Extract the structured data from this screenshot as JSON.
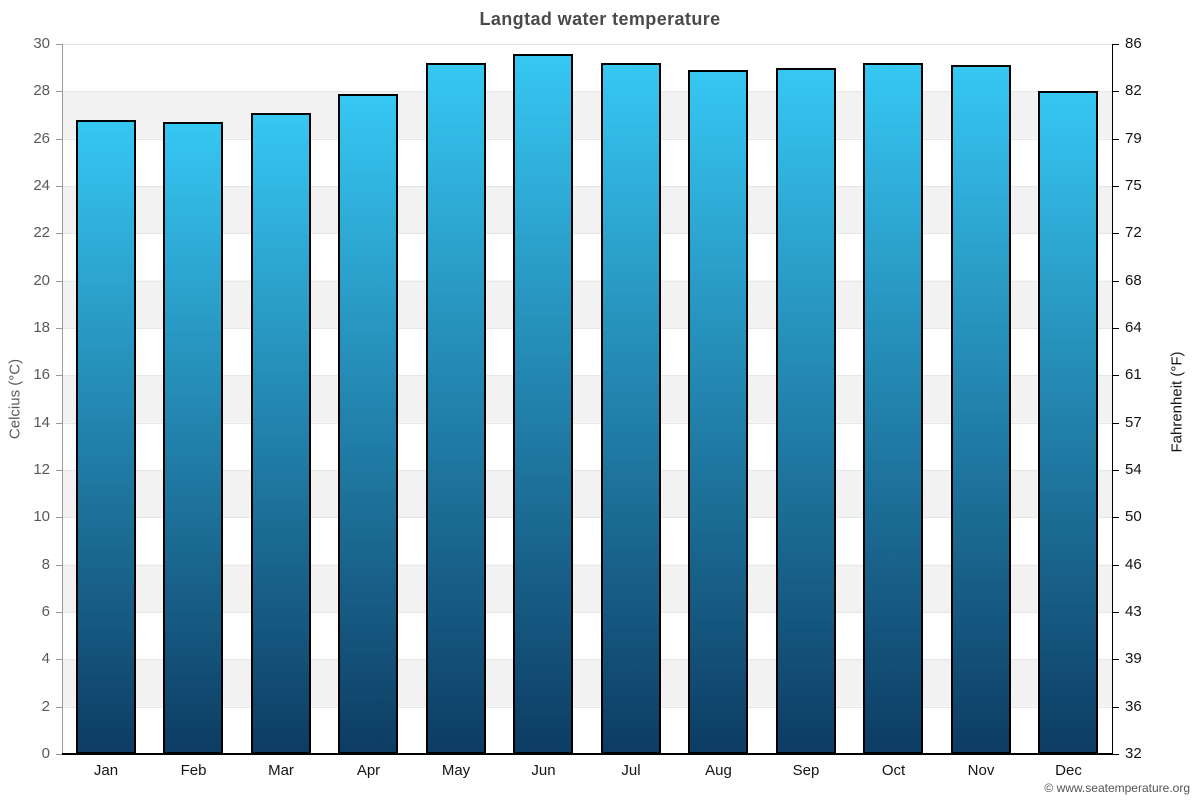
{
  "chart": {
    "title": "Langtad water temperature",
    "y_left_label": "Celcius (°C)",
    "y_right_label": "Fahrenheit (°F)",
    "footer": "© www.seatemperature.org"
  },
  "chart_data": {
    "type": "bar",
    "title": "Langtad water temperature",
    "categories": [
      "Jan",
      "Feb",
      "Mar",
      "Apr",
      "May",
      "Jun",
      "Jul",
      "Aug",
      "Sep",
      "Oct",
      "Nov",
      "Dec"
    ],
    "series": [
      {
        "name": "Water temperature (°C)",
        "values": [
          26.8,
          26.7,
          27.1,
          27.9,
          29.2,
          29.6,
          29.2,
          28.9,
          29.0,
          29.2,
          29.1,
          28.0
        ]
      }
    ],
    "xlabel": "",
    "ylabel_left": "Celcius (°C)",
    "ylabel_right": "Fahrenheit (°F)",
    "ylim": [
      0,
      30
    ],
    "yticks_celsius": [
      0,
      2,
      4,
      6,
      8,
      10,
      12,
      14,
      16,
      18,
      20,
      22,
      24,
      26,
      28,
      30
    ],
    "yticks_fahrenheit": [
      32,
      36,
      39,
      43,
      46,
      50,
      54,
      57,
      61,
      64,
      68,
      72,
      75,
      79,
      82,
      86
    ],
    "grid": "alternating horizontal bands every 2°C",
    "legend": "none",
    "colors": {
      "bar_gradient_top": "#36c7f3",
      "bar_gradient_bottom": "#0d3c63",
      "bar_border": "#000000",
      "band_gray": "#f2f2f2",
      "band_white": "#ffffff",
      "left_axis": "#999999",
      "right_axis": "#000000",
      "title_text": "#4a4a4a",
      "left_tick_text": "#595959",
      "right_tick_text": "#141414"
    }
  }
}
